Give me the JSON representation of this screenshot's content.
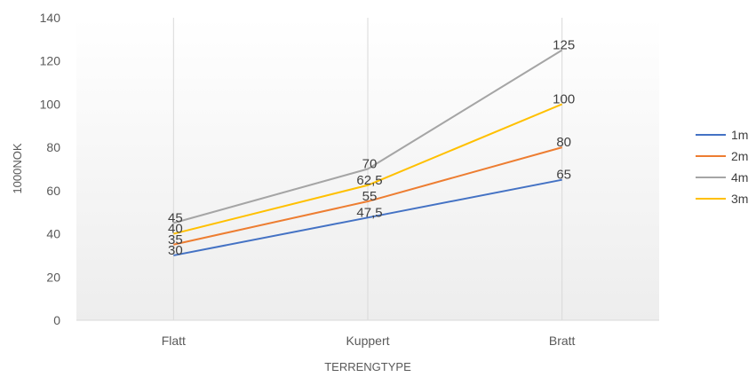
{
  "chart_data": {
    "type": "line",
    "categories": [
      "Flatt",
      "Kuppert",
      "Bratt"
    ],
    "xlabel": "TERRENGTYPE",
    "ylabel": "1000NOK",
    "ylim": [
      0,
      140
    ],
    "yticks": [
      0,
      20,
      40,
      60,
      80,
      100,
      120,
      140
    ],
    "grid": "vertical category lines",
    "legend_position": "right",
    "series": [
      {
        "name": "1m",
        "color": "#4472C4",
        "values": [
          30,
          47.5,
          65
        ],
        "labels": [
          "30",
          "47,5",
          "65"
        ]
      },
      {
        "name": "2m",
        "color": "#ED7D31",
        "values": [
          35,
          55,
          80
        ],
        "labels": [
          "35",
          "55",
          "80"
        ]
      },
      {
        "name": "4m",
        "color": "#A5A5A5",
        "values": [
          45,
          70,
          125
        ],
        "labels": [
          "45",
          "70",
          "125"
        ]
      },
      {
        "name": "3m",
        "color": "#FFC000",
        "values": [
          40,
          62.5,
          100
        ],
        "labels": [
          "40",
          "62,5",
          "100"
        ]
      }
    ]
  }
}
